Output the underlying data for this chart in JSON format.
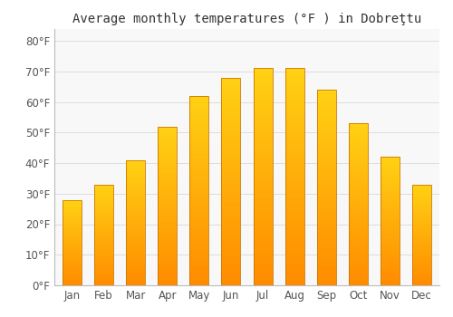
{
  "months": [
    "Jan",
    "Feb",
    "Mar",
    "Apr",
    "May",
    "Jun",
    "Jul",
    "Aug",
    "Sep",
    "Oct",
    "Nov",
    "Dec"
  ],
  "temps": [
    28,
    33,
    41,
    52,
    62,
    68,
    71,
    71,
    64,
    53,
    42,
    33
  ],
  "title": "Average monthly temperatures (°F ) in Dobreţtu",
  "ylabel_ticks": [
    0,
    10,
    20,
    30,
    40,
    50,
    60,
    70,
    80
  ],
  "ylim": [
    0,
    84
  ],
  "bar_color": "#FFA500",
  "bar_edge_color": "#CC7700",
  "background_color": "#ffffff",
  "plot_bg_color": "#f8f8f8",
  "grid_color": "#dddddd",
  "title_fontsize": 10,
  "tick_fontsize": 8.5,
  "bar_width": 0.6
}
